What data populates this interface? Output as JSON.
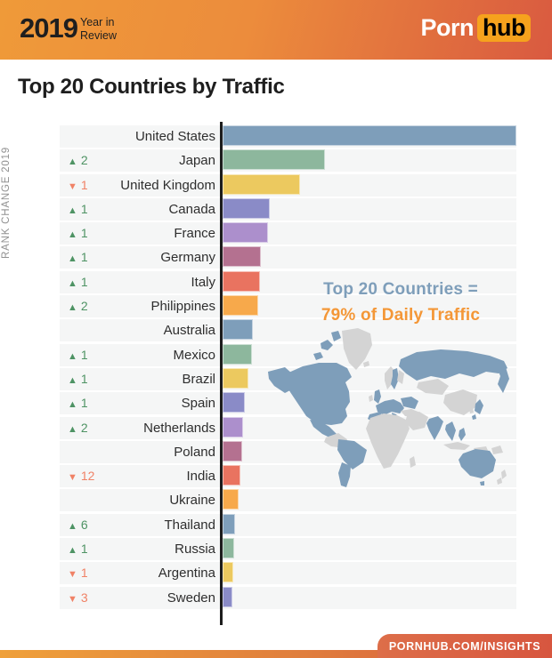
{
  "header": {
    "year": "2019",
    "subtitle_line1": "Year in",
    "subtitle_line2": "Review",
    "logo_part1": "Porn",
    "logo_part2": "hub"
  },
  "page_title": "Top 20 Countries by Traffic",
  "chart_data": {
    "type": "bar",
    "orientation": "horizontal",
    "title": "Top 20 Countries by Traffic",
    "axis_label": "RANK CHANGE 2019",
    "categories": [
      "United States",
      "Japan",
      "United Kingdom",
      "Canada",
      "France",
      "Germany",
      "Italy",
      "Philippines",
      "Australia",
      "Mexico",
      "Brazil",
      "Spain",
      "Netherlands",
      "Poland",
      "India",
      "Ukraine",
      "Thailand",
      "Russia",
      "Argentina",
      "Sweden"
    ],
    "values": [
      330,
      115,
      87,
      53,
      51,
      43,
      42,
      40,
      34,
      33,
      29,
      25,
      23,
      22,
      20,
      18,
      14,
      13,
      12,
      11
    ],
    "values_unit": "relative bar length in px; no numeric axis shown",
    "rank_changes": [
      null,
      2,
      -1,
      1,
      1,
      1,
      1,
      2,
      null,
      1,
      1,
      1,
      2,
      null,
      -12,
      null,
      6,
      1,
      -1,
      -3
    ],
    "bar_colors": [
      "#7e9eba",
      "#8db79d",
      "#ecc95f",
      "#8a8bc7",
      "#ac8fcc",
      "#b47190",
      "#e97360",
      "#f7a94b",
      "#7e9eba",
      "#8db79d",
      "#ecc95f",
      "#8a8bc7",
      "#ac8fcc",
      "#b47190",
      "#e97360",
      "#f7a94b",
      "#7e9eba",
      "#8db79d",
      "#ecc95f",
      "#8a8bc7"
    ],
    "up_symbol": "▲",
    "down_symbol": "▼",
    "annotation_line1": "Top 20 Countries =",
    "annotation_line2": "79% of Daily Traffic",
    "legend_position": "none",
    "grid": false
  },
  "map": {
    "highlight_meaning": "top-20 country",
    "other_meaning": "other country"
  },
  "footer": {
    "url": "PORNHUB.COM/INSIGHTS"
  },
  "colors": {
    "up": "#4e9364",
    "down": "#f08266",
    "ann_blue": "#7e9eba",
    "ann_orange": "#f49737",
    "map_blue": "#7e9eba",
    "map_gray": "#d4d4d4",
    "logo_badge": "#f6a21d"
  }
}
